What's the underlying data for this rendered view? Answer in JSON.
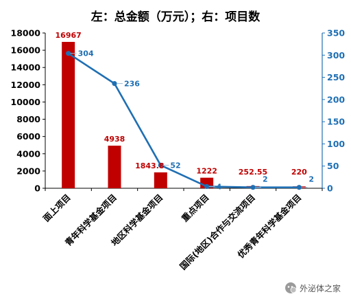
{
  "chart_data": {
    "type": "bar",
    "title": "左：总金额（万元）；右：项目数",
    "categories": [
      "面上项目",
      "青年科学基金项目",
      "地区科学基金项目",
      "重点项目",
      "国际(地区)合作与交流项目",
      "优秀青年科学基金项目"
    ],
    "series": [
      {
        "type": "bar",
        "axis": "left",
        "values": [
          16967,
          4938,
          1843.8,
          1222,
          252.55,
          220
        ],
        "labels": [
          "16967",
          "4938",
          "1843.8",
          "1222",
          "252.55",
          "220"
        ]
      },
      {
        "type": "line",
        "axis": "right",
        "values": [
          304,
          236,
          52,
          4,
          2,
          2
        ],
        "labels": [
          "304",
          "236",
          "52",
          "4",
          "2",
          "2"
        ]
      }
    ],
    "left_axis": {
      "ylim": [
        0,
        18000
      ],
      "ticks": [
        "0",
        "2000",
        "4000",
        "6000",
        "8000",
        "10000",
        "12000",
        "14000",
        "16000",
        "18000"
      ]
    },
    "right_axis": {
      "ylim": [
        0,
        350
      ],
      "ticks": [
        "0",
        "50",
        "100",
        "150",
        "200",
        "250",
        "300",
        "350"
      ]
    },
    "grid": false,
    "legend": "none"
  },
  "colors": {
    "bar": "#c00000",
    "line": "#1f6fb3",
    "axis": "#000000",
    "right_axis": "#1f6fb3"
  },
  "watermark": {
    "text": "外泌体之家",
    "icon": "wechat-icon"
  }
}
